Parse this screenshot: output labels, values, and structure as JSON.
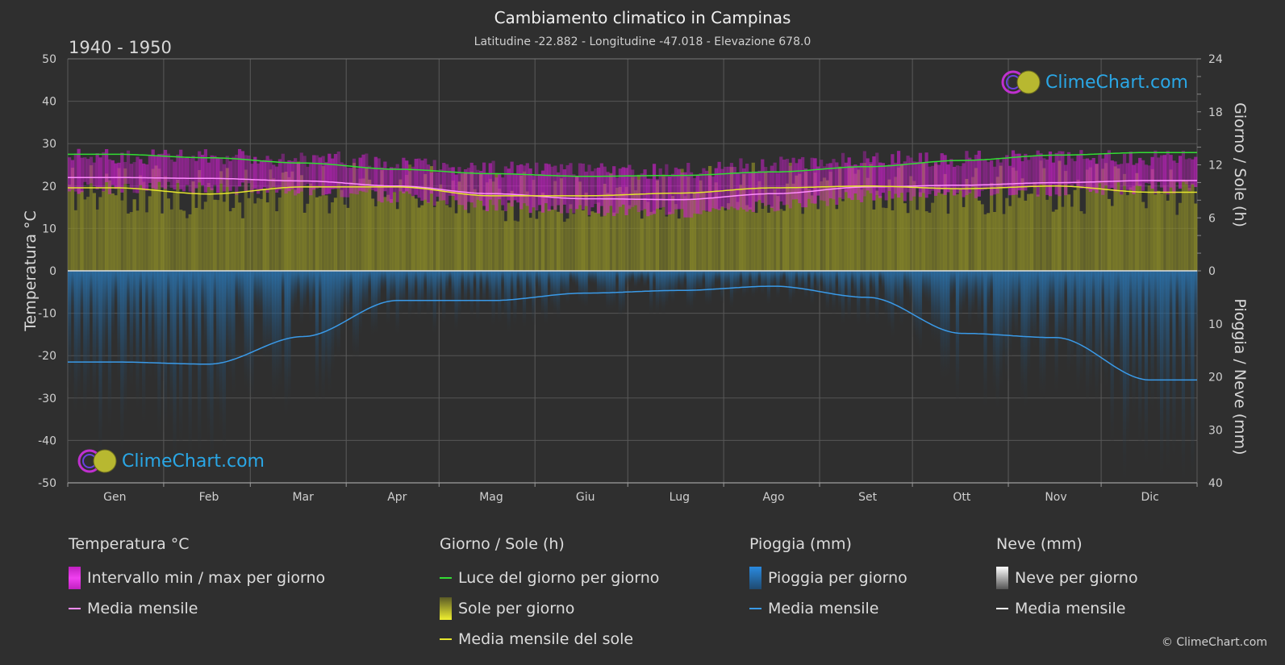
{
  "header": {
    "title": "Cambiamento climatico in Campinas",
    "subtitle": "Latitudine -22.882 - Longitudine -47.018 - Elevazione 678.0",
    "period": "1940 - 1950"
  },
  "brand": {
    "logo_text": "ClimeChart.com",
    "copyright": "© ClimeChart.com"
  },
  "colors": {
    "background": "#2f2f2f",
    "temp_range": "#d21ed2",
    "temp_mean": "#ff8cff",
    "daylight": "#33dd33",
    "sun_fill": "#8a8a28",
    "sun_mean": "#e6e62e",
    "rain": "#2a7bbd",
    "rain_mean": "#3a9ae8",
    "snow": "#ffffff",
    "brand_blue": "#2aa7e6"
  },
  "legend": {
    "temperature": {
      "title": "Temperatura °C",
      "items": [
        "Intervallo min / max per giorno",
        "Media mensile"
      ]
    },
    "sun": {
      "title": "Giorno / Sole (h)",
      "items": [
        "Luce del giorno per giorno",
        "Sole per giorno",
        "Media mensile del sole"
      ]
    },
    "rain": {
      "title": "Pioggia (mm)",
      "items": [
        "Pioggia per giorno",
        "Media mensile"
      ]
    },
    "snow": {
      "title": "Neve (mm)",
      "items": [
        "Neve per giorno",
        "Media mensile"
      ]
    }
  },
  "chart_data": {
    "type": "area",
    "categories": [
      "Gen",
      "Feb",
      "Mar",
      "Apr",
      "Mag",
      "Giu",
      "Lug",
      "Ago",
      "Set",
      "Ott",
      "Nov",
      "Dic"
    ],
    "axes": {
      "left": {
        "label": "Temperatura °C",
        "range": [
          -50,
          50
        ],
        "ticks": [
          50,
          40,
          30,
          20,
          10,
          0,
          -10,
          -20,
          -30,
          -40,
          -50
        ]
      },
      "right_top": {
        "label": "Giorno / Sole (h)",
        "range": [
          0,
          24
        ],
        "ticks": [
          24,
          18,
          12,
          6,
          0
        ]
      },
      "right_bottom": {
        "label": "Pioggia / Neve (mm)",
        "range": [
          0,
          40
        ],
        "ticks": [
          0,
          10,
          20,
          30,
          40
        ]
      }
    },
    "grid": true,
    "series": [
      {
        "name": "Media mensile",
        "kind": "temperature_mean",
        "values": [
          22.0,
          21.8,
          21.2,
          20.0,
          18.2,
          17.0,
          16.8,
          18.2,
          19.8,
          20.2,
          20.8,
          21.3
        ]
      },
      {
        "name": "Intervallo min / max per giorno",
        "kind": "temperature_range",
        "min": [
          19.5,
          19.5,
          19.0,
          17.5,
          15.5,
          14.5,
          14.0,
          15.5,
          17.5,
          18.5,
          19.0,
          19.5
        ],
        "max": [
          27.0,
          27.0,
          26.5,
          25.5,
          24.0,
          23.5,
          23.5,
          25.0,
          26.5,
          26.5,
          26.5,
          26.5
        ]
      },
      {
        "name": "Luce del giorno per giorno",
        "kind": "daylight",
        "values": [
          13.2,
          12.8,
          12.2,
          11.5,
          11.0,
          10.7,
          10.8,
          11.2,
          11.8,
          12.5,
          13.1,
          13.4
        ]
      },
      {
        "name": "Media mensile del sole",
        "kind": "sun_mean",
        "values": [
          9.4,
          8.7,
          9.5,
          9.5,
          8.5,
          8.5,
          8.8,
          9.4,
          9.6,
          9.3,
          9.6,
          8.9
        ]
      },
      {
        "name": "Media mensile",
        "kind": "rain_mean",
        "values": [
          17.2,
          17.6,
          12.4,
          5.6,
          5.6,
          4.2,
          3.7,
          2.9,
          5.0,
          11.8,
          12.6,
          20.6
        ]
      }
    ]
  }
}
